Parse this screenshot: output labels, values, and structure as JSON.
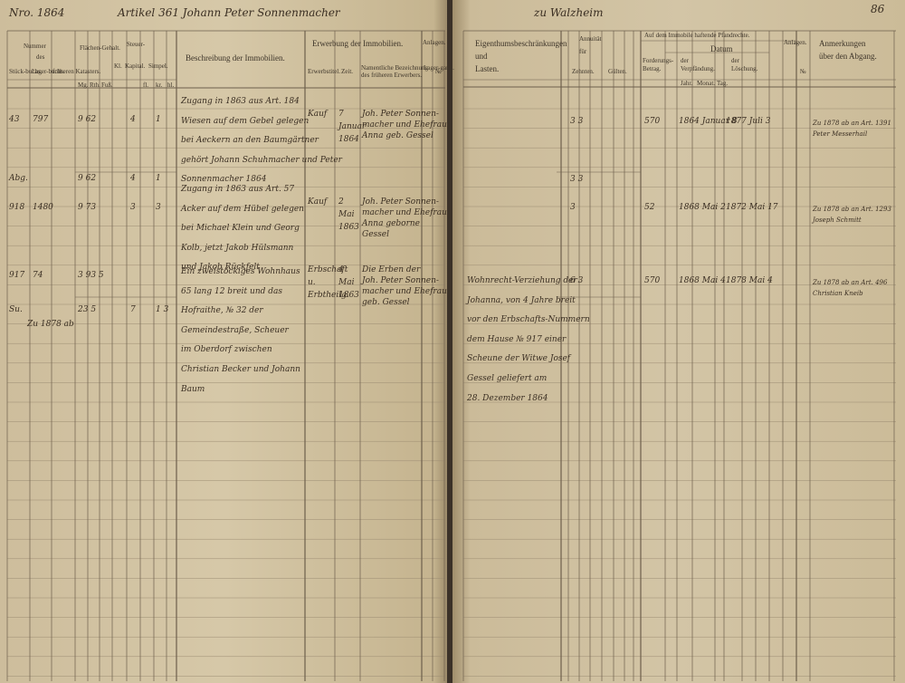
{
  "left_page": {
    "top_line": {
      "number": "Nro. 1864",
      "article": "Artikel 361 Johann Peter Sonnenmacher"
    },
    "headers": {
      "nummer": "Nummer",
      "des": "des",
      "stueckbuchs": "Stück-buchs.",
      "lagerbuchs": "Lager-buchs.",
      "kataster": "früheren Katasters.",
      "flaechen": "Flächen-Gehalt.",
      "mg": "Mg.",
      "rth": "Rth.",
      "fuss": "Fuß.",
      "steuer": "Steuer-",
      "kl": "Kl.",
      "kapital": "Kapital.",
      "simpel": "Simpel.",
      "fl": "fl.",
      "kr": "kr.",
      "hl": "hl.",
      "beschreibung": "Beschreibung der Immobilien.",
      "erwerbung": "Erwerbung der Immobilien.",
      "erwerbstitel": "Erwerbstitel.",
      "zeit": "Zeit.",
      "vorbesitzer": [
        "Namentliche Bezeichnung",
        "des früheren Erwerbers."
      ],
      "anlagen": "Anlagen.",
      "lagergang": "Lager-gang.",
      "no": "№"
    },
    "entries": [
      {
        "stueck": "43",
        "lager": "797",
        "flaeche": "9 62",
        "steuer": "4",
        "simpel": "1",
        "description": [
          "Zugang in 1863 aus Art. 184",
          "Wiesen auf dem Gebel gelegen",
          "bei Aeckern an den Baumgärtner",
          "gehört Johann Schuhmacher und Peter",
          "Sonnenmacher 1864"
        ],
        "title": "Kauf",
        "time": [
          "7",
          "Januar",
          "1864"
        ],
        "previous": [
          "Joh. Peter Sonnen-",
          "macher und Ehefrau",
          "Anna geb. Gessel"
        ]
      },
      {
        "stueck": "Abg.",
        "flaeche": "9 62",
        "steuer": "4",
        "simpel": "1"
      },
      {
        "stueck": "918",
        "lager": "1480",
        "flaeche": "9 73",
        "steuer": "3",
        "simpel": "3",
        "description": [
          "Zugang in 1863 aus Art. 57",
          "Acker auf dem Hübel gelegen",
          "bei Michael Klein und Georg",
          "Kolb, jetzt Jakob Hülsmann",
          "und Jakob Rückfelt"
        ],
        "title": "Kauf",
        "time": [
          "2",
          "Mai",
          "1863"
        ],
        "previous": [
          "Joh. Peter Sonnen-",
          "macher und Ehefrau",
          "Anna geborne",
          "Gessel"
        ]
      },
      {
        "stueck": "917",
        "lager": "74",
        "flaeche": "3 93 5",
        "description": [
          "Ein zweistöckiges Wohnhaus",
          "65 lang 12 breit und das",
          "Hofraithe, № 32 der",
          "Gemeindestraße, Scheuer",
          "im Oberdorf zwischen",
          "Christian Becker und Johann",
          "Baum"
        ],
        "title": [
          "Erbschaft",
          "u.",
          "Erbtheilg."
        ],
        "time": [
          "4",
          "Mai",
          "1863"
        ],
        "previous": [
          "Die Erben der",
          "Joh. Peter Sonnen-",
          "macher und Ehefrau",
          "geb. Gessel"
        ]
      },
      {
        "stueck": "Su.",
        "side": "Zu 1878 ab",
        "flaeche": "23 5",
        "steuer": "7",
        "simpel": "1 3"
      }
    ]
  },
  "right_page": {
    "top_line": {
      "place": "zu Walzheim",
      "page_number": "86"
    },
    "headers": {
      "lasten": [
        "Eigenthumsbeschränkungen",
        "und",
        "Lasten."
      ],
      "annuitaet": [
        "Annuität",
        "für"
      ],
      "zehnten": "Zehnten.",
      "guelten": "Gülten.",
      "pfandrechte": "Auf dem Immobile haftende Pfandrechte.",
      "forderung": [
        "Forderungs-",
        "Betrag."
      ],
      "datum": "Datum",
      "verpfaendung": [
        "der",
        "Verpfändung."
      ],
      "loeschung": [
        "der",
        "Löschung."
      ],
      "jahr": "Jahr.",
      "monat": "Monat.",
      "tag": "Tag.",
      "anlagen": "Anlagen.",
      "no": "№",
      "anmerkungen": [
        "Anmerkungen",
        "über den Abgang."
      ]
    },
    "entries": [
      {
        "annuity": "3   3",
        "amount": "570",
        "pledge": "1864  Januar  8",
        "release": "1877  Juli  3",
        "remarks": "Zu 1878 ab an Art. 1391 Peter Messerhail"
      },
      {
        "annuity": "3   3"
      },
      {
        "annuity": "3",
        "amount": "52",
        "pledge": "1868  Mai  2",
        "release": "1872  Mai  17",
        "remarks": "Zu 1878 ab an Art. 1293 Joseph Schmitt"
      },
      {
        "burdens": [
          "Wohnrecht-Verziehung der",
          "Johanna, von 4 Jahre breit",
          "vor den Erbschafts-Nummern",
          "dem Hause № 917 einer",
          "Scheune der Witwe Josef",
          "Gessel geliefert am",
          "28. Dezember 1864"
        ],
        "annuity": "6   3",
        "amount": "570",
        "pledge": "1868  Mai  4",
        "release": "1878  Mai  4",
        "remarks": "Zu 1878 ab an Art. 496 Christian Kneib"
      }
    ]
  }
}
